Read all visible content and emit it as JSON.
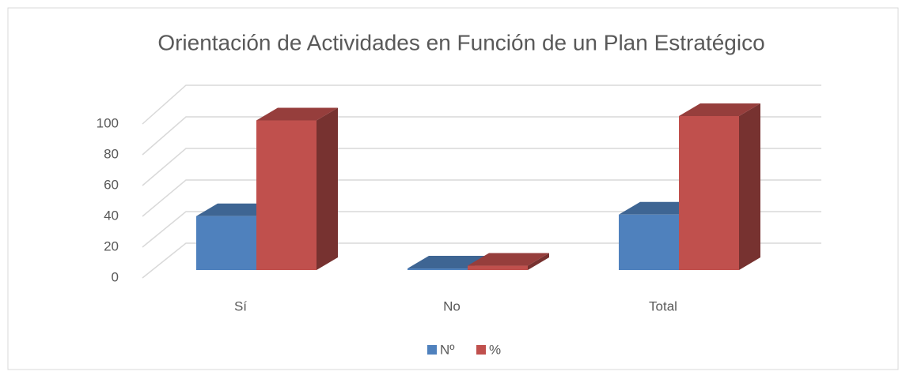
{
  "chart_data": {
    "type": "bar3d",
    "title": "Orientación de Actividades en Función de un Plan Estratégico",
    "categories": [
      "Sí",
      "No",
      "Total"
    ],
    "series": [
      {
        "name": "Nº",
        "color": "#4f81bd",
        "values": [
          35,
          1,
          36
        ]
      },
      {
        "name": "%",
        "color": "#c0504d",
        "values": [
          97.2,
          2.8,
          100
        ]
      }
    ],
    "ylim": [
      0,
      100
    ],
    "yticks": [
      0,
      20,
      40,
      60,
      80,
      100
    ],
    "grid": true,
    "legend": "bottom"
  }
}
